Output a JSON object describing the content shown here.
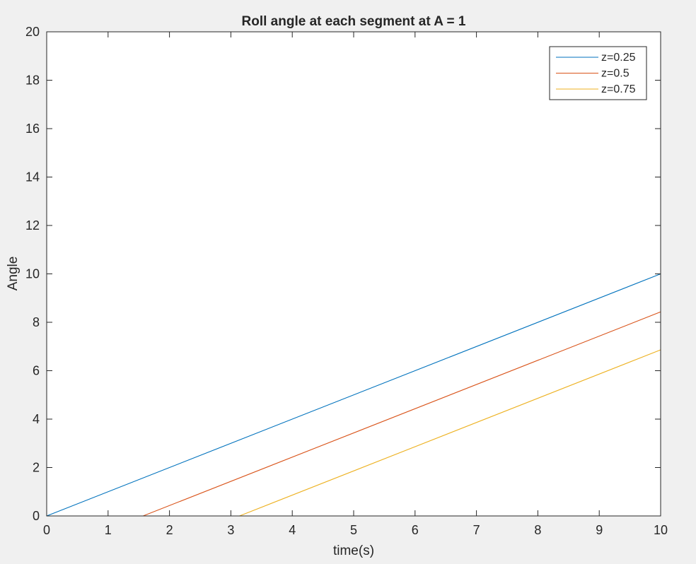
{
  "window": {
    "background": "#f0f0f0"
  },
  "chart_data": {
    "type": "line",
    "title": "Roll angle at each segment at A = 1",
    "xlabel": "time(s)",
    "ylabel": "Angle",
    "xlim": [
      0,
      10
    ],
    "ylim": [
      0,
      20
    ],
    "xticks": [
      0,
      1,
      2,
      3,
      4,
      5,
      6,
      7,
      8,
      9,
      10
    ],
    "yticks": [
      0,
      2,
      4,
      6,
      8,
      10,
      12,
      14,
      16,
      18,
      20
    ],
    "xtick_labels": [
      "0",
      "1",
      "2",
      "3",
      "4",
      "5",
      "6",
      "7",
      "8",
      "9",
      "10"
    ],
    "ytick_labels": [
      "0",
      "2",
      "4",
      "6",
      "8",
      "10",
      "12",
      "14",
      "16",
      "18",
      "20"
    ],
    "grid": false,
    "legend_position": "top-right",
    "series": [
      {
        "name": "z=0.25",
        "color": "#0072bd",
        "x": [
          0,
          10
        ],
        "y": [
          0,
          10
        ]
      },
      {
        "name": "z=0.5",
        "color": "#d95319",
        "x": [
          0,
          1.57,
          10
        ],
        "y": [
          0,
          0,
          8.43
        ]
      },
      {
        "name": "z=0.75",
        "color": "#edb120",
        "x": [
          0,
          3.14,
          10
        ],
        "y": [
          0,
          0,
          6.86
        ]
      }
    ]
  }
}
